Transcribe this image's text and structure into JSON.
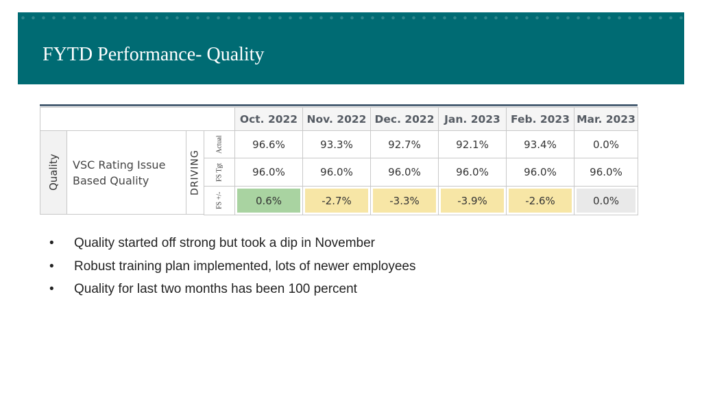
{
  "header": {
    "title": "FYTD Performance- Quality"
  },
  "table": {
    "columns": [
      "Oct. 2022",
      "Nov. 2022",
      "Dec. 2022",
      "Jan. 2023",
      "Feb. 2023",
      "Mar. 2023"
    ],
    "category": "Quality",
    "metric": "VSC Rating Issue Based Quality",
    "group": "DRIVING",
    "row_labels": [
      "Actual",
      "FS Tgt",
      "FS +/-"
    ],
    "rows": [
      [
        "96.6%",
        "93.3%",
        "92.7%",
        "92.1%",
        "93.4%",
        "0.0%"
      ],
      [
        "96.0%",
        "96.0%",
        "96.0%",
        "96.0%",
        "96.0%",
        "96.0%"
      ],
      [
        "0.6%",
        "-2.7%",
        "-3.3%",
        "-3.9%",
        "-2.6%",
        "0.0%"
      ]
    ]
  },
  "bullets": [
    "Quality started off strong but took a dip in November",
    "Robust training plan implemented, lots of newer employees",
    "Quality for last two months has been 100 percent"
  ]
}
